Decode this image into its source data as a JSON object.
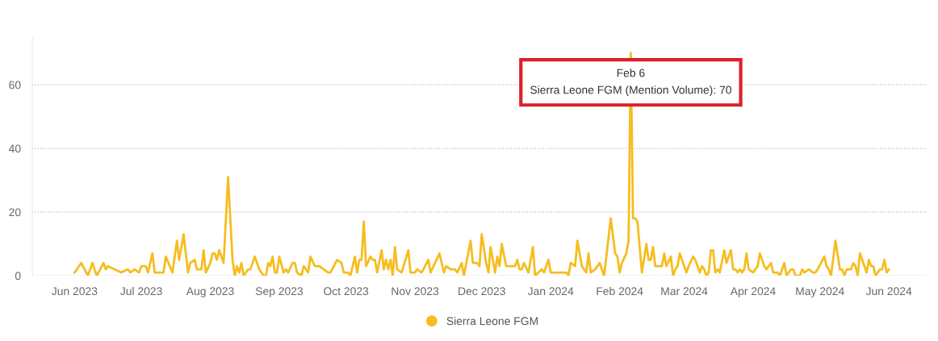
{
  "chart_data": {
    "type": "line",
    "x": [
      "2023-06-01",
      "2023-06-04",
      "2023-06-07",
      "2023-06-09",
      "2023-06-11",
      "2023-06-14",
      "2023-06-15",
      "2023-06-16",
      "2023-06-22",
      "2023-06-25",
      "2023-06-26",
      "2023-06-28",
      "2023-06-30",
      "2023-07-01",
      "2023-07-03",
      "2023-07-04",
      "2023-07-06",
      "2023-07-07",
      "2023-07-11",
      "2023-07-12",
      "2023-07-15",
      "2023-07-17",
      "2023-07-18",
      "2023-07-20",
      "2023-07-22",
      "2023-07-23",
      "2023-07-25",
      "2023-07-26",
      "2023-07-28",
      "2023-07-29",
      "2023-07-30",
      "2023-08-01",
      "2023-08-02",
      "2023-08-03",
      "2023-08-04",
      "2023-08-05",
      "2023-08-07",
      "2023-08-09",
      "2023-08-11",
      "2023-08-12",
      "2023-08-13",
      "2023-08-14",
      "2023-08-15",
      "2023-08-16",
      "2023-08-18",
      "2023-08-19",
      "2023-08-21",
      "2023-08-23",
      "2023-08-25",
      "2023-08-26",
      "2023-08-27",
      "2023-08-28",
      "2023-08-29",
      "2023-08-30",
      "2023-08-31",
      "2023-09-01",
      "2023-09-03",
      "2023-09-04",
      "2023-09-05",
      "2023-09-07",
      "2023-09-08",
      "2023-09-09",
      "2023-09-11",
      "2023-09-12",
      "2023-09-14",
      "2023-09-15",
      "2023-09-17",
      "2023-09-19",
      "2023-09-21",
      "2023-09-23",
      "2023-09-24",
      "2023-09-27",
      "2023-09-29",
      "2023-09-30",
      "2023-10-02",
      "2023-10-03",
      "2023-10-05",
      "2023-10-06",
      "2023-10-07",
      "2023-10-08",
      "2023-10-09",
      "2023-10-10",
      "2023-10-12",
      "2023-10-13",
      "2023-10-14",
      "2023-10-15",
      "2023-10-17",
      "2023-10-18",
      "2023-10-19",
      "2023-10-20",
      "2023-10-21",
      "2023-10-22",
      "2023-10-23",
      "2023-10-24",
      "2023-10-26",
      "2023-10-29",
      "2023-10-30",
      "2023-11-01",
      "2023-11-02",
      "2023-11-04",
      "2023-11-07",
      "2023-11-08",
      "2023-11-12",
      "2023-11-13",
      "2023-11-14",
      "2023-11-15",
      "2023-11-17",
      "2023-11-19",
      "2023-11-20",
      "2023-11-22",
      "2023-11-23",
      "2023-11-26",
      "2023-11-27",
      "2023-11-29",
      "2023-11-30",
      "2023-12-01",
      "2023-12-03",
      "2023-12-04",
      "2023-12-05",
      "2023-12-07",
      "2023-12-08",
      "2023-12-09",
      "2023-12-10",
      "2023-12-12",
      "2023-12-16",
      "2023-12-17",
      "2023-12-18",
      "2023-12-19",
      "2023-12-20",
      "2023-12-22",
      "2023-12-24",
      "2023-12-25",
      "2023-12-28",
      "2023-12-29",
      "2023-12-31",
      "2024-01-01",
      "2024-01-03",
      "2024-01-08",
      "2024-01-09",
      "2024-01-10",
      "2024-01-12",
      "2024-01-13",
      "2024-01-15",
      "2024-01-17",
      "2024-01-18",
      "2024-01-19",
      "2024-01-21",
      "2024-01-23",
      "2024-01-25",
      "2024-01-28",
      "2024-01-30",
      "2024-01-31",
      "2024-02-01",
      "2024-02-02",
      "2024-02-04",
      "2024-02-05",
      "2024-02-06",
      "2024-02-07",
      "2024-02-08",
      "2024-02-09",
      "2024-02-11",
      "2024-02-13",
      "2024-02-14",
      "2024-02-15",
      "2024-02-16",
      "2024-02-17",
      "2024-02-19",
      "2024-02-20",
      "2024-02-21",
      "2024-02-22",
      "2024-02-24",
      "2024-02-25",
      "2024-02-26",
      "2024-02-27",
      "2024-02-28",
      "2024-03-01",
      "2024-03-02",
      "2024-03-03",
      "2024-03-05",
      "2024-03-06",
      "2024-03-08",
      "2024-03-09",
      "2024-03-10",
      "2024-03-11",
      "2024-03-12",
      "2024-03-13",
      "2024-03-14",
      "2024-03-15",
      "2024-03-16",
      "2024-03-17",
      "2024-03-19",
      "2024-03-20",
      "2024-03-22",
      "2024-03-23",
      "2024-03-24",
      "2024-03-25",
      "2024-03-26",
      "2024-03-27",
      "2024-03-28",
      "2024-03-29",
      "2024-03-30",
      "2024-04-01",
      "2024-04-03",
      "2024-04-04",
      "2024-04-06",
      "2024-04-07",
      "2024-04-09",
      "2024-04-10",
      "2024-04-12",
      "2024-04-13",
      "2024-04-15",
      "2024-04-16",
      "2024-04-18",
      "2024-04-19",
      "2024-04-20",
      "2024-04-22",
      "2024-04-23",
      "2024-04-24",
      "2024-04-26",
      "2024-04-28",
      "2024-04-29",
      "2024-04-30",
      "2024-05-03",
      "2024-05-04",
      "2024-05-05",
      "2024-05-06",
      "2024-05-08",
      "2024-05-10",
      "2024-05-11",
      "2024-05-12",
      "2024-05-13",
      "2024-05-15",
      "2024-05-16",
      "2024-05-17",
      "2024-05-18",
      "2024-05-19",
      "2024-05-20",
      "2024-05-22",
      "2024-05-23",
      "2024-05-24",
      "2024-05-25",
      "2024-05-26",
      "2024-05-28",
      "2024-05-29",
      "2024-05-30",
      "2024-05-31",
      "2024-06-01"
    ],
    "series": [
      {
        "name": "Sierra Leone FGM",
        "color": "#f5bd1f",
        "values": [
          1,
          4,
          0,
          4,
          0,
          4,
          2,
          3,
          1,
          2,
          1,
          2,
          1,
          3,
          3,
          1,
          7,
          1,
          1,
          6,
          1,
          11,
          5,
          13,
          1,
          4,
          5,
          2,
          2,
          8,
          1,
          4,
          7,
          7,
          5,
          8,
          4,
          31,
          5,
          0,
          3,
          1,
          4,
          0,
          2,
          2,
          6,
          2,
          0,
          0,
          4,
          3,
          6,
          1,
          1,
          6,
          1,
          2,
          1,
          4,
          4,
          1,
          0,
          3,
          1,
          6,
          3,
          3,
          2,
          1,
          1,
          5,
          4,
          1,
          1,
          0,
          6,
          1,
          5,
          5,
          17,
          3,
          6,
          5,
          5,
          1,
          8,
          2,
          5,
          2,
          5,
          0,
          9,
          2,
          1,
          8,
          1,
          1,
          2,
          1,
          5,
          1,
          7,
          4,
          1,
          3,
          2,
          2,
          1,
          4,
          0,
          11,
          4,
          4,
          3,
          13,
          4,
          1,
          9,
          1,
          6,
          3,
          10,
          3,
          3,
          5,
          2,
          2,
          4,
          1,
          9,
          0,
          2,
          1,
          5,
          1,
          1,
          1,
          0,
          4,
          3,
          11,
          3,
          1,
          7,
          1,
          2,
          4,
          0,
          18,
          7,
          6,
          1,
          4,
          7,
          11,
          70,
          18,
          18,
          17,
          1,
          10,
          5,
          5,
          9,
          3,
          3,
          3,
          7,
          3,
          6,
          0,
          2,
          3,
          7,
          3,
          1,
          3,
          6,
          5,
          1,
          3,
          2,
          0,
          1,
          8,
          8,
          1,
          2,
          1,
          8,
          4,
          8,
          2,
          2,
          1,
          2,
          1,
          2,
          7,
          2,
          1,
          3,
          7,
          3,
          2,
          4,
          1,
          1,
          0,
          4,
          0,
          2,
          2,
          0,
          0,
          2,
          1,
          2,
          1,
          1,
          2,
          6,
          3,
          2,
          0,
          11,
          2,
          2,
          0,
          2,
          2,
          4,
          3,
          0,
          7,
          5,
          1,
          5,
          3,
          3,
          0,
          2,
          2,
          5,
          1,
          2
        ]
      }
    ],
    "xlim": [
      "2023-05-13",
      "2024-06-18"
    ],
    "xticks": [
      {
        "value": "2023-06-01",
        "label": "Jun 2023"
      },
      {
        "value": "2023-07-01",
        "label": "Jul 2023"
      },
      {
        "value": "2023-08-01",
        "label": "Aug 2023"
      },
      {
        "value": "2023-09-01",
        "label": "Sep 2023"
      },
      {
        "value": "2023-10-01",
        "label": "Oct 2023"
      },
      {
        "value": "2023-11-01",
        "label": "Nov 2023"
      },
      {
        "value": "2023-12-01",
        "label": "Dec 2023"
      },
      {
        "value": "2024-01-01",
        "label": "Jan 2024"
      },
      {
        "value": "2024-02-01",
        "label": "Feb 2024"
      },
      {
        "value": "2024-03-01",
        "label": "Mar 2024"
      },
      {
        "value": "2024-04-01",
        "label": "Apr 2024"
      },
      {
        "value": "2024-05-01",
        "label": "May 2024"
      },
      {
        "value": "2024-06-01",
        "label": "Jun 2024"
      }
    ],
    "ylim": [
      0,
      75
    ],
    "yticks": [
      0,
      20,
      40,
      60
    ],
    "grid": "y",
    "legend": "bottom",
    "annotations": [
      {
        "text": "Feb 6\nSierra Leone FGM (Mention Volume): 70",
        "x": "2024-02-06",
        "y": 70
      }
    ]
  }
}
